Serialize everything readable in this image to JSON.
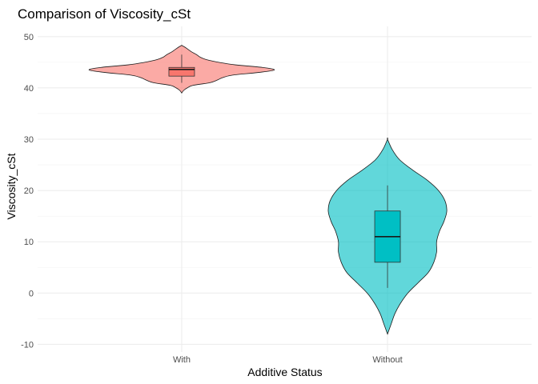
{
  "chart_data": {
    "type": "violin",
    "title": "Comparison of Viscosity_cSt",
    "xlabel": "Additive Status",
    "ylabel": "Viscosity_cSt",
    "categories": [
      "With",
      "Without"
    ],
    "ylim": [
      -11.5,
      52
    ],
    "yticks": [
      -10,
      0,
      10,
      20,
      30,
      40,
      50
    ],
    "grid": true,
    "legend": "none",
    "series": [
      {
        "category": "With",
        "color": "#F8766D",
        "violin_range": [
          39.0,
          48.3
        ],
        "density": [
          [
            39.0,
            0.0
          ],
          [
            39.5,
            0.02
          ],
          [
            40.0,
            0.06
          ],
          [
            40.5,
            0.12
          ],
          [
            41.0,
            0.3
          ],
          [
            41.5,
            0.38
          ],
          [
            42.0,
            0.44
          ],
          [
            42.5,
            0.55
          ],
          [
            43.0,
            0.82
          ],
          [
            43.5,
            1.0
          ],
          [
            44.0,
            0.87
          ],
          [
            44.5,
            0.58
          ],
          [
            45.0,
            0.4
          ],
          [
            45.5,
            0.27
          ],
          [
            46.0,
            0.2
          ],
          [
            46.5,
            0.16
          ],
          [
            47.0,
            0.11
          ],
          [
            47.5,
            0.07
          ],
          [
            48.0,
            0.03
          ],
          [
            48.3,
            0.0
          ]
        ],
        "box": {
          "min": 41.0,
          "q1": 42.3,
          "median": 43.6,
          "q3": 44.0,
          "max": 46.5
        }
      },
      {
        "category": "Without",
        "color": "#00BFC4",
        "violin_range": [
          -8.0,
          30.0
        ],
        "density": [
          [
            -8.0,
            0.0
          ],
          [
            -6.0,
            0.04
          ],
          [
            -4.0,
            0.08
          ],
          [
            -2.0,
            0.14
          ],
          [
            0.0,
            0.22
          ],
          [
            2.0,
            0.33
          ],
          [
            4.0,
            0.44
          ],
          [
            6.0,
            0.5
          ],
          [
            8.0,
            0.53
          ],
          [
            10.0,
            0.53
          ],
          [
            12.0,
            0.56
          ],
          [
            14.0,
            0.61
          ],
          [
            16.0,
            0.64
          ],
          [
            18.0,
            0.62
          ],
          [
            20.0,
            0.55
          ],
          [
            22.0,
            0.43
          ],
          [
            24.0,
            0.27
          ],
          [
            26.0,
            0.13
          ],
          [
            28.0,
            0.05
          ],
          [
            30.0,
            0.0
          ]
        ],
        "box": {
          "min": 1.0,
          "q1": 6.0,
          "median": 11.0,
          "q3": 16.0,
          "max": 21.0
        }
      }
    ]
  }
}
